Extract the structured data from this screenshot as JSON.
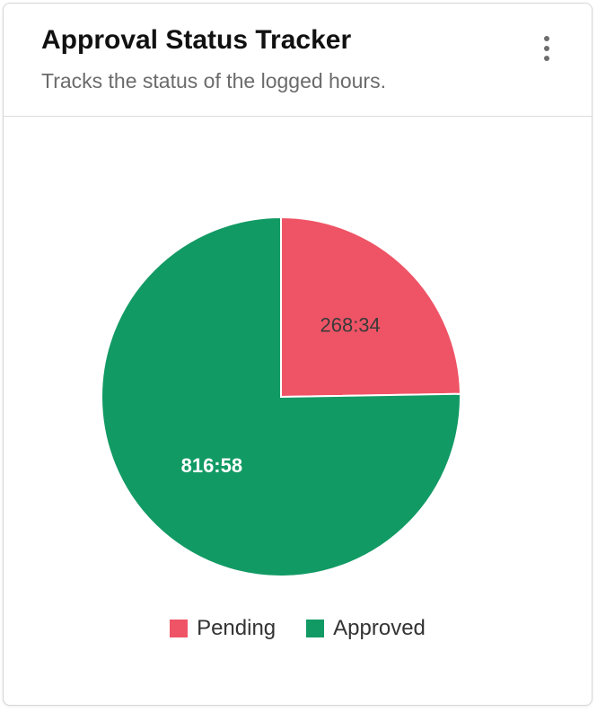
{
  "header": {
    "title": "Approval Status Tracker",
    "subtitle": "Tracks the status of the logged hours."
  },
  "menu": {
    "icon": "more-vertical-icon"
  },
  "chart_data": {
    "type": "pie",
    "categories": [
      "Pending",
      "Approved"
    ],
    "values": [
      268.57,
      816.97
    ],
    "labels": [
      "268:34",
      "816:58"
    ],
    "colors": [
      "#ef5466",
      "#129a64"
    ],
    "label_colors": [
      "#3a3a3a",
      "#ffffff"
    ],
    "legend_position": "bottom"
  }
}
